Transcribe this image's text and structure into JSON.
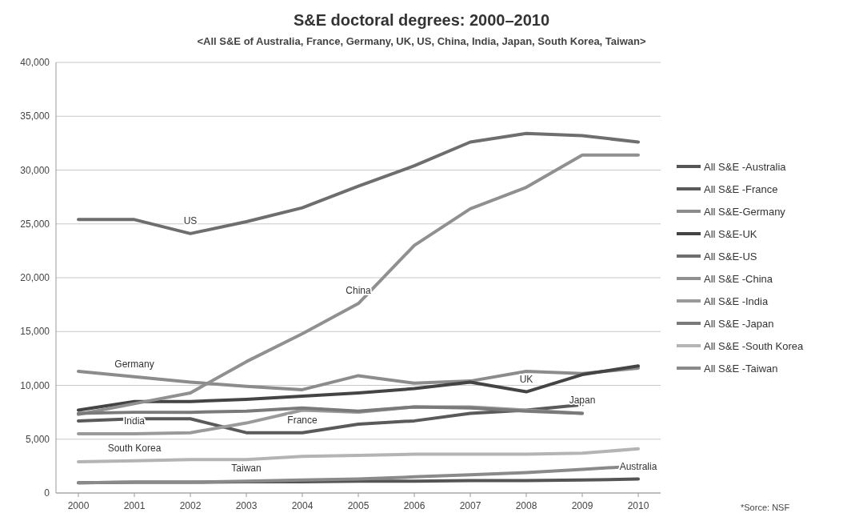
{
  "chart_data": {
    "type": "line",
    "title": "S&E doctoral degrees: 2000–2010",
    "subtitle": "<All S&E of Australia, France, Germany, UK, US, China, India, Japan, South Korea, Taiwan>",
    "x": [
      2000,
      2001,
      2002,
      2003,
      2004,
      2005,
      2006,
      2007,
      2008,
      2009,
      2010
    ],
    "xlim": [
      1999.6,
      2010.4
    ],
    "xticks": [
      2000,
      2001,
      2002,
      2003,
      2004,
      2005,
      2006,
      2007,
      2008,
      2009,
      2010
    ],
    "ylim": [
      0,
      40000
    ],
    "yticks": [
      {
        "value": 0,
        "label": "0"
      },
      {
        "value": 5000,
        "label": "5,000"
      },
      {
        "value": 10000,
        "label": "10,000"
      },
      {
        "value": 15000,
        "label": "15,000"
      },
      {
        "value": 20000,
        "label": "20,000"
      },
      {
        "value": 25000,
        "label": "25,000"
      },
      {
        "value": 30000,
        "label": "30,000"
      },
      {
        "value": 35000,
        "label": "35,000"
      },
      {
        "value": 40000,
        "label": "40,000"
      }
    ],
    "grid": "y",
    "legend": "right",
    "marker": "none",
    "line_style": "solid",
    "series": [
      {
        "name": "All S&E -Australia",
        "color": "#555555",
        "values": [
          950,
          1000,
          1000,
          1050,
          1050,
          1100,
          1100,
          1150,
          1150,
          1200,
          1300
        ]
      },
      {
        "name": "All S&E -France",
        "color": "#5a5a5a",
        "values": [
          6700,
          6900,
          6900,
          5600,
          5600,
          6400,
          6700,
          7400,
          7700,
          8200,
          null
        ]
      },
      {
        "name": "All S&E-Germany",
        "color": "#8c8c8c",
        "values": [
          11300,
          10800,
          10300,
          9900,
          9600,
          10900,
          10200,
          10400,
          11300,
          11100,
          11600
        ]
      },
      {
        "name": "All S&E-UK",
        "color": "#444444",
        "values": [
          7700,
          8500,
          8500,
          8700,
          9000,
          9300,
          9700,
          10300,
          9400,
          11000,
          11800
        ]
      },
      {
        "name": "All S&E-US",
        "color": "#6e6e6e",
        "values": [
          25400,
          25400,
          24100,
          25200,
          26500,
          28500,
          30400,
          32600,
          33400,
          33200,
          32600
        ]
      },
      {
        "name": "All S&E -China",
        "color": "#909090",
        "values": [
          7300,
          8300,
          9300,
          12200,
          14800,
          17600,
          23000,
          26400,
          28400,
          31400,
          31400
        ]
      },
      {
        "name": "All S&E -India",
        "color": "#9a9a9a",
        "values": [
          5500,
          5500,
          5600,
          6500,
          7700,
          7500,
          8000,
          8000,
          7700,
          7400,
          null
        ]
      },
      {
        "name": "All S&E -Japan",
        "color": "#7a7a7a",
        "values": [
          7400,
          7500,
          7500,
          7600,
          7900,
          7600,
          8000,
          7900,
          7600,
          7400,
          null
        ]
      },
      {
        "name": "All S&E -South Korea",
        "color": "#b4b4b4",
        "values": [
          2900,
          3000,
          3100,
          3100,
          3400,
          3500,
          3600,
          3600,
          3600,
          3700,
          4100
        ]
      },
      {
        "name": "All S&E -Taiwan",
        "color": "#8a8a8a",
        "values": [
          950,
          1000,
          1000,
          1100,
          1200,
          1300,
          1500,
          1700,
          1900,
          2200,
          2500
        ]
      }
    ],
    "annotations": [
      {
        "text": "US",
        "x": 2002,
        "y": 24100
      },
      {
        "text": "China",
        "x": 2005,
        "y": 17600
      },
      {
        "text": "Germany",
        "x": 2001,
        "y": 10800
      },
      {
        "text": "UK",
        "x": 2008,
        "y": 9400
      },
      {
        "text": "India",
        "x": 2001,
        "y": 5500
      },
      {
        "text": "France",
        "x": 2004,
        "y": 5600
      },
      {
        "text": "Japan",
        "x": 2009,
        "y": 7400
      },
      {
        "text": "South Korea",
        "x": 2001,
        "y": 3000
      },
      {
        "text": "Taiwan",
        "x": 2003,
        "y": 1100
      },
      {
        "text": "Australia",
        "x": 2010,
        "y": 1300
      },
      "*Sorce: NSF"
    ]
  }
}
